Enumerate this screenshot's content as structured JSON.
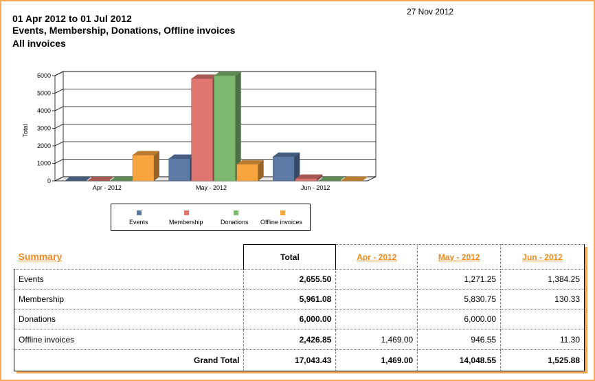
{
  "report": {
    "date": "27 Nov 2012",
    "period": "01 Apr 2012 to 01 Jul 2012",
    "categories_line": "Events, Membership, Donations, Offline invoices",
    "filter": "All invoices"
  },
  "colors": {
    "events": "#5b7aa6",
    "membership": "#e07670",
    "donations": "#7dba70",
    "offline": "#f8a540",
    "accent": "#f08a1e"
  },
  "chart_data": {
    "type": "bar",
    "categories": [
      "Apr - 2012",
      "May - 2012",
      "Jun - 2012"
    ],
    "series": [
      {
        "name": "Events",
        "values": [
          0,
          1271.25,
          1384.25
        ]
      },
      {
        "name": "Membership",
        "values": [
          0,
          5830.75,
          130.33
        ]
      },
      {
        "name": "Donations",
        "values": [
          0,
          6000.0,
          0
        ]
      },
      {
        "name": "Offline invoices",
        "values": [
          1469.0,
          946.55,
          11.3
        ]
      }
    ],
    "ylabel": "Total",
    "ylim": [
      0,
      6000
    ],
    "yticks": [
      "0",
      "1000",
      "2000",
      "3000",
      "4000",
      "5000",
      "6000"
    ],
    "grid": true,
    "legend": "bottom"
  },
  "summary": {
    "title": "Summary",
    "headers": [
      "Total",
      "Apr - 2012",
      "May - 2012",
      "Jun - 2012"
    ],
    "rows": [
      {
        "label": "Events",
        "total": "2,655.50",
        "apr": "",
        "may": "1,271.25",
        "jun": "1,384.25"
      },
      {
        "label": "Membership",
        "total": "5,961.08",
        "apr": "",
        "may": "5,830.75",
        "jun": "130.33"
      },
      {
        "label": "Donations",
        "total": "6,000.00",
        "apr": "",
        "may": "6,000.00",
        "jun": ""
      },
      {
        "label": "Offline invoices",
        "total": "2,426.85",
        "apr": "1,469.00",
        "may": "946.55",
        "jun": "11.30"
      }
    ],
    "grand": {
      "label": "Grand Total",
      "total": "17,043.43",
      "apr": "1,469.00",
      "may": "14,048.55",
      "jun": "1,525.88"
    }
  }
}
